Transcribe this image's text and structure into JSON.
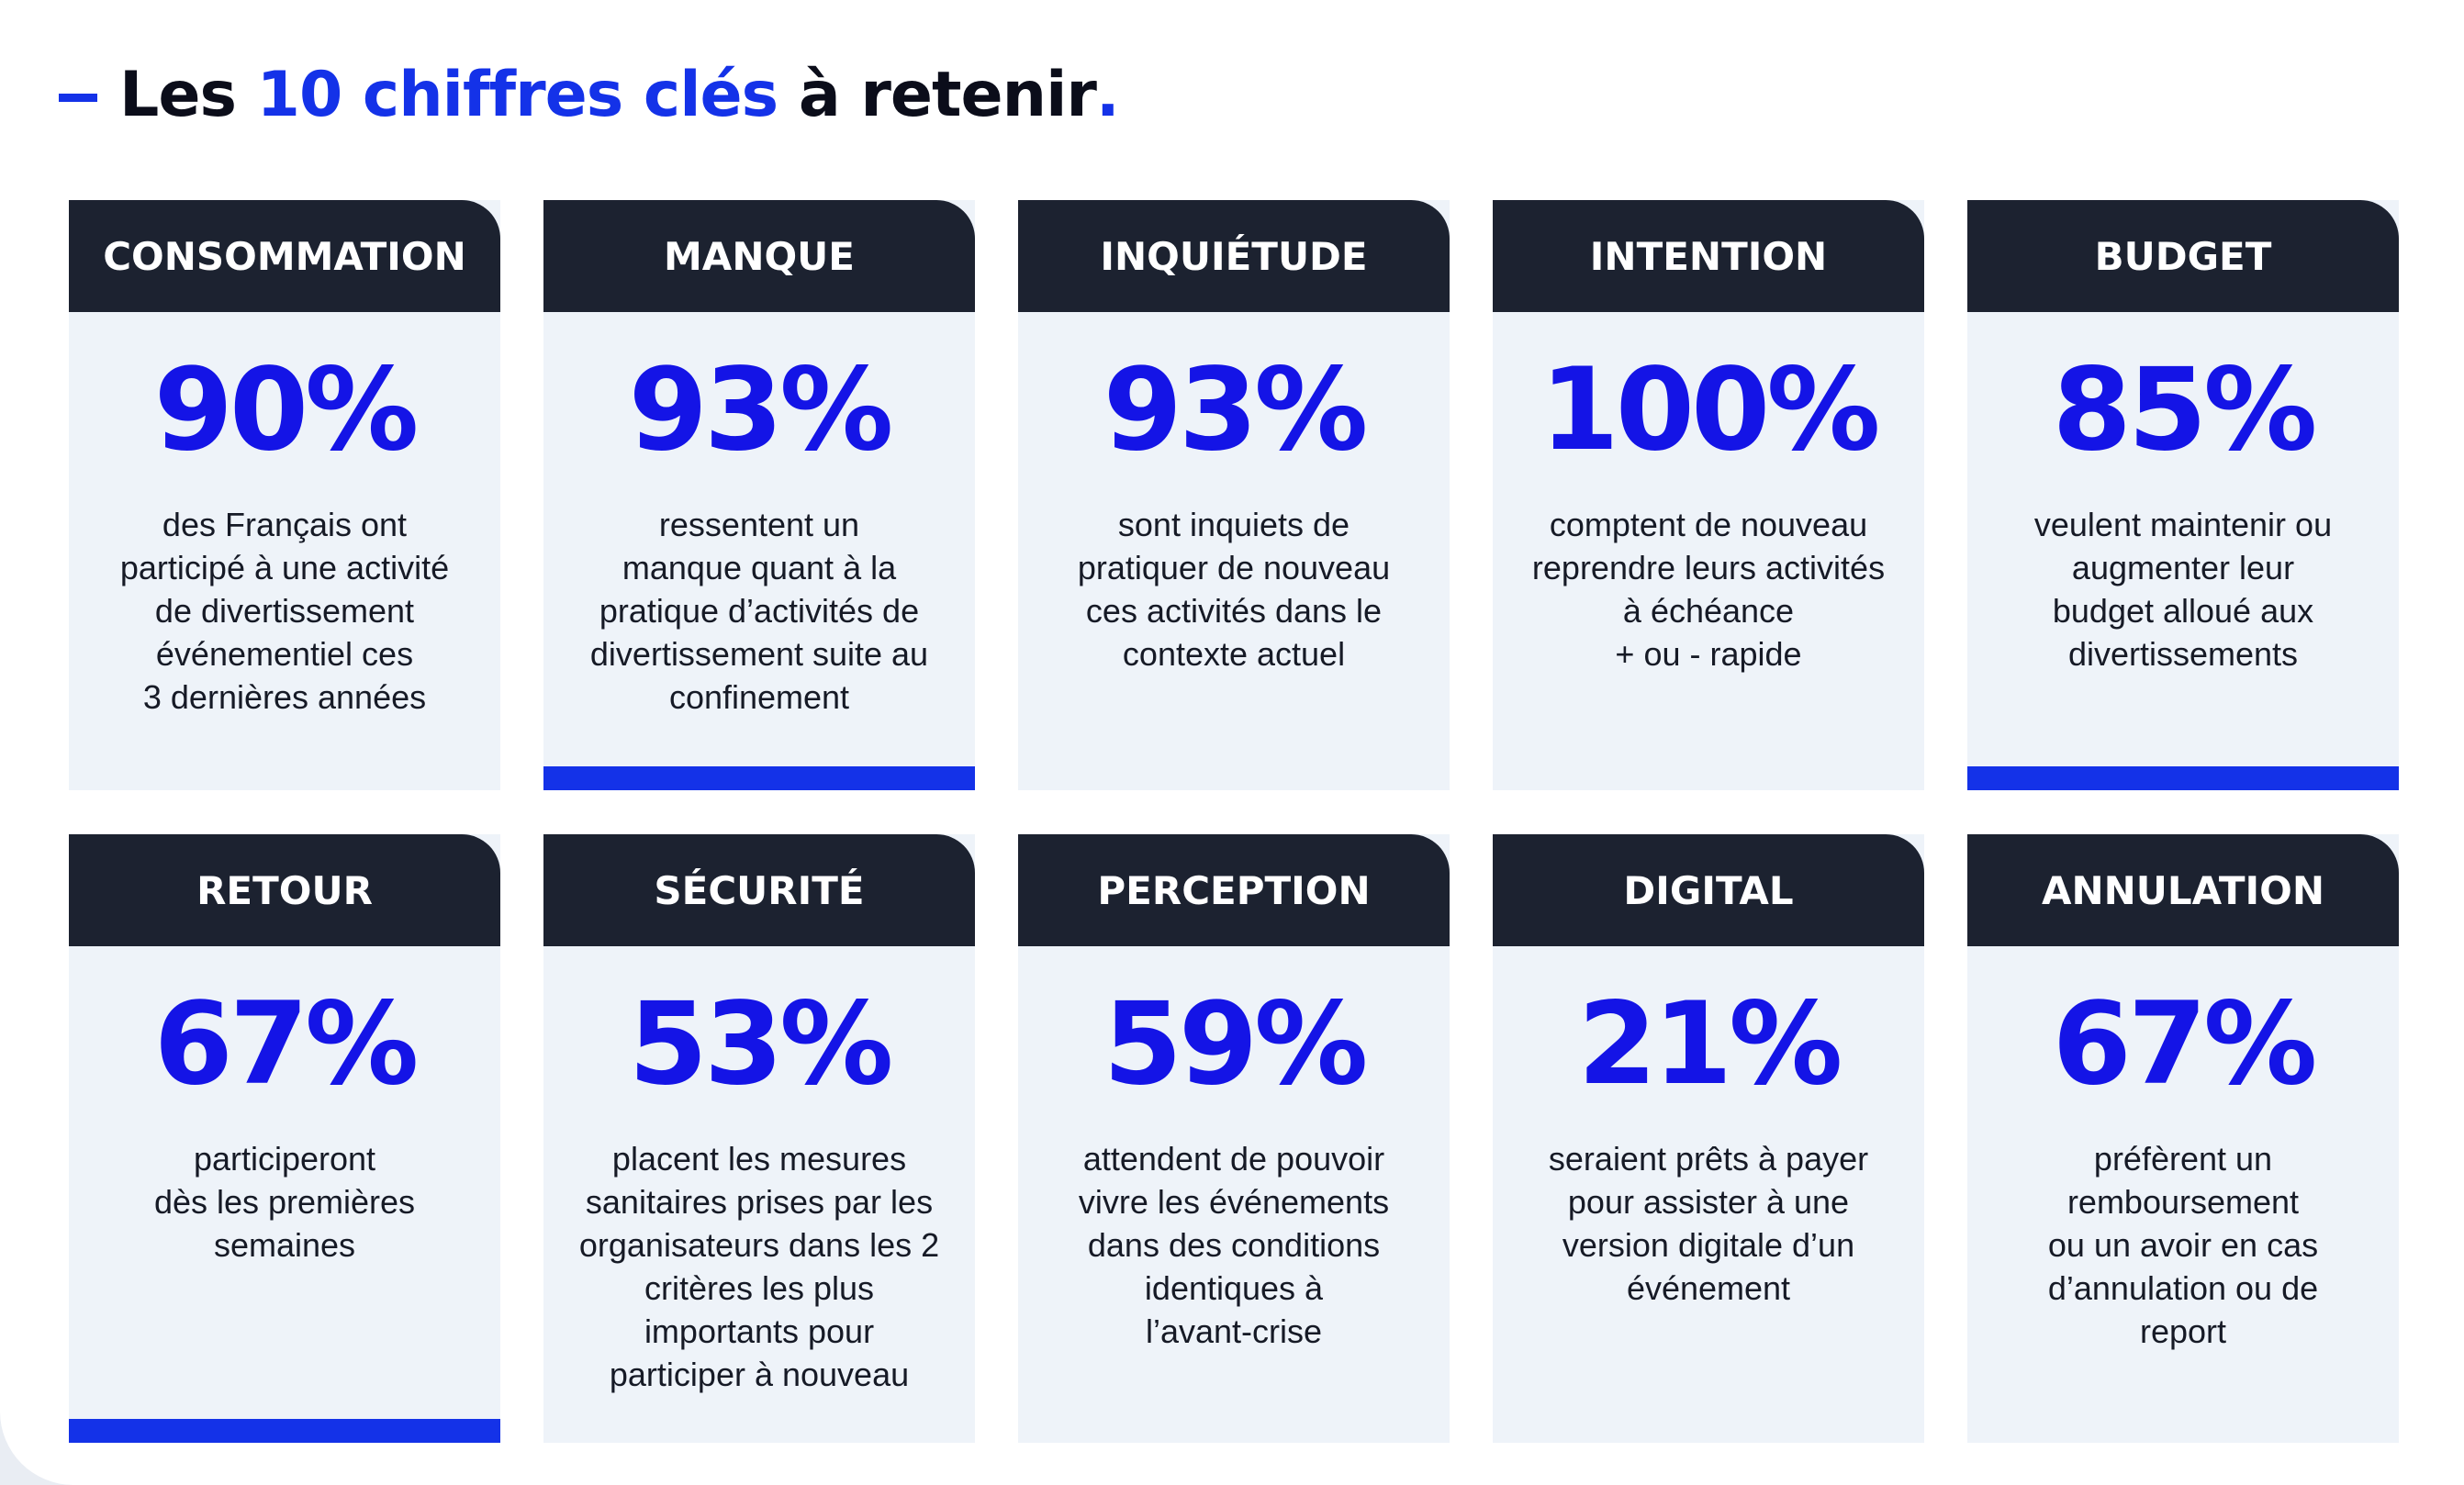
{
  "title": {
    "prefix": "Les ",
    "highlight": "10 chiffres clés",
    "suffix": " à retenir",
    "period": "."
  },
  "colors": {
    "accent": "#1432e8",
    "value": "#1414e6",
    "header_bg": "#1c2230",
    "card_bg": "#eef3f9"
  },
  "cards": [
    {
      "label": "CONSOMMATION",
      "value": "90%",
      "text": "des Français ont\nparticipé à une activité\nde divertissement\névénementiel ces\n3 dernières années",
      "bar": false
    },
    {
      "label": "MANQUE",
      "value": "93%",
      "text": "ressentent un\nmanque quant à la\npratique d’activités de\ndivertissement suite au\nconfinement",
      "bar": true
    },
    {
      "label": "INQUIÉTUDE",
      "value": "93%",
      "text": "sont inquiets de\npratiquer de nouveau\nces activités dans le\ncontexte actuel",
      "bar": false
    },
    {
      "label": "INTENTION",
      "value": "100%",
      "text": "comptent de nouveau\nreprendre leurs activités\nà échéance\n+ ou - rapide",
      "bar": false
    },
    {
      "label": "BUDGET",
      "value": "85%",
      "text": "veulent maintenir ou\naugmenter leur\nbudget alloué aux\ndivertissements",
      "bar": true
    },
    {
      "label": "RETOUR",
      "value": "67%",
      "text": "participeront\ndès les premières\nsemaines",
      "bar": true
    },
    {
      "label": "SÉCURITÉ",
      "value": "53%",
      "text": "placent les mesures\nsanitaires prises par les\norganisateurs dans les 2\ncritères les plus\nimportants pour\nparticiper à nouveau",
      "bar": false
    },
    {
      "label": "PERCEPTION",
      "value": "59%",
      "text": "attendent de pouvoir\nvivre les événements\ndans des conditions\nidentiques à\nl’avant-crise",
      "bar": false
    },
    {
      "label": "DIGITAL",
      "value": "21%",
      "text": "seraient prêts à payer\npour assister à une\nversion digitale d’un\névénement",
      "bar": false
    },
    {
      "label": "ANNULATION",
      "value": "67%",
      "text": "préfèrent un\nremboursement\nou un avoir en cas\nd’annulation ou de\nreport",
      "bar": false
    }
  ]
}
